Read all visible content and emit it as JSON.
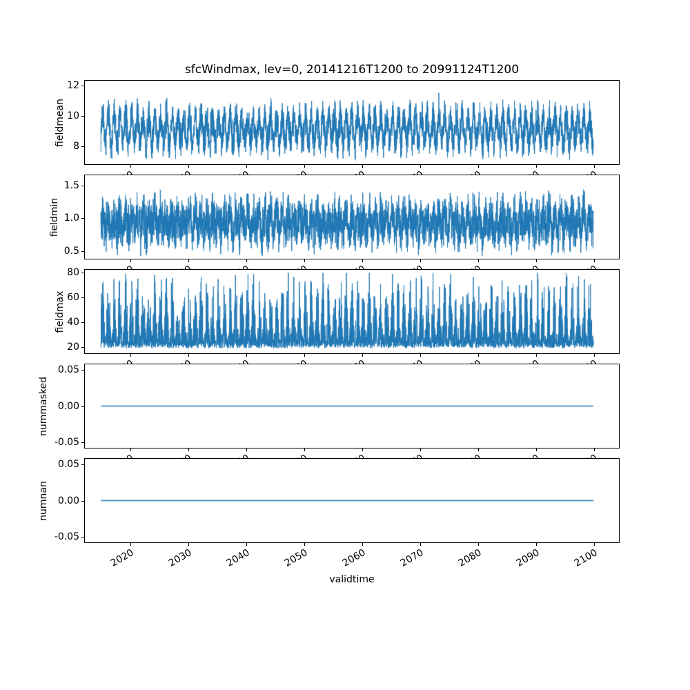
{
  "figure": {
    "title": "sfcWindmax, lev=0, 20141216T1200 to 20991124T1200",
    "xlabel": "validtime",
    "background": "#ffffff",
    "line_color": "#1f77b4",
    "spine_color": "#000000",
    "xticks": [
      2020,
      2030,
      2040,
      2050,
      2060,
      2070,
      2080,
      2090,
      2100
    ],
    "xtick_labels": [
      "2020",
      "2030",
      "2040",
      "2050",
      "2060",
      "2070",
      "2080",
      "2090",
      "2100"
    ],
    "xlim": [
      2012.2,
      2104.3
    ],
    "x_start": 2014.96,
    "x_end": 2099.9,
    "xtick_rotation_deg": 30
  },
  "chart_data": [
    {
      "type": "line",
      "name": "fieldmean",
      "ylabel": "fieldmean",
      "ylim": [
        6.8,
        12.3
      ],
      "yticks": [
        8,
        10,
        12
      ],
      "ytick_labels": [
        "8",
        "10",
        "12"
      ],
      "x_range": [
        2014.96,
        2099.9
      ],
      "summary": {
        "n_points": 4430,
        "approx_mean": 9.1,
        "approx_min": 7.1,
        "approx_max": 11.9,
        "pattern": "dense noisy weekly series with annual cycle"
      },
      "gen": {
        "kind": "seasonal-noise",
        "mean": 9.1,
        "seasonal": 0.85,
        "amp": 1.35,
        "rare_p": 0.004,
        "rare_amp": 0.9,
        "clamp": [
          7.05,
          11.95
        ],
        "seed": 7,
        "lw": 1
      }
    },
    {
      "type": "line",
      "name": "fieldmin",
      "ylabel": "fieldmin",
      "ylim": [
        0.38,
        1.66
      ],
      "yticks": [
        0.5,
        1.0,
        1.5
      ],
      "ytick_labels": [
        "0.5",
        "1.0",
        "1.5"
      ],
      "x_range": [
        2014.96,
        2099.9
      ],
      "summary": {
        "n_points": 4430,
        "approx_mean": 0.93,
        "approx_min": 0.42,
        "approx_max": 1.62,
        "pattern": "dense noisy weekly series"
      },
      "gen": {
        "kind": "seasonal-noise",
        "mean": 0.93,
        "seasonal": 0.12,
        "amp": 0.42,
        "rare_p": 0.003,
        "rare_amp": 0.3,
        "clamp": [
          0.42,
          1.62
        ],
        "seed": 11,
        "lw": 1
      }
    },
    {
      "type": "line",
      "name": "fieldmax",
      "ylabel": "fieldmax",
      "ylim": [
        15,
        82
      ],
      "yticks": [
        20,
        40,
        60,
        80
      ],
      "ytick_labels": [
        "20",
        "40",
        "60",
        "80"
      ],
      "x_range": [
        2014.96,
        2099.9
      ],
      "summary": {
        "n_points": 4430,
        "approx_mean": 27,
        "approx_min": 18,
        "approx_max": 79,
        "pattern": "dense floor near 20 with upward spikes to ~80"
      },
      "gen": {
        "kind": "seasonal-spikes",
        "base": 19.0,
        "unif": 5.0,
        "spike_amp": 60,
        "spike_pow": 2.6,
        "clamp": [
          17.5,
          79.5
        ],
        "seed": 23,
        "lw": 1
      }
    },
    {
      "type": "line",
      "name": "nummasked",
      "ylabel": "nummasked",
      "ylim": [
        -0.0575,
        0.0575
      ],
      "yticks": [
        0.05,
        0.0,
        -0.05
      ],
      "ytick_labels": [
        "0.05",
        "0.00",
        "-0.05"
      ],
      "x_range": [
        2014.96,
        2099.9
      ],
      "summary": {
        "n_points": 4430,
        "constant_value": 0,
        "pattern": "flat line at 0"
      },
      "gen": {
        "kind": "constant",
        "value": 0,
        "seed": 1,
        "lw": 1.5
      }
    },
    {
      "type": "line",
      "name": "numnan",
      "ylabel": "numnan",
      "ylim": [
        -0.0575,
        0.0575
      ],
      "yticks": [
        0.05,
        0.0,
        -0.05
      ],
      "ytick_labels": [
        "0.05",
        "0.00",
        "-0.05"
      ],
      "x_range": [
        2014.96,
        2099.9
      ],
      "summary": {
        "n_points": 4430,
        "constant_value": 0,
        "pattern": "flat line at 0"
      },
      "gen": {
        "kind": "constant",
        "value": 0,
        "seed": 2,
        "lw": 1.5
      }
    }
  ]
}
